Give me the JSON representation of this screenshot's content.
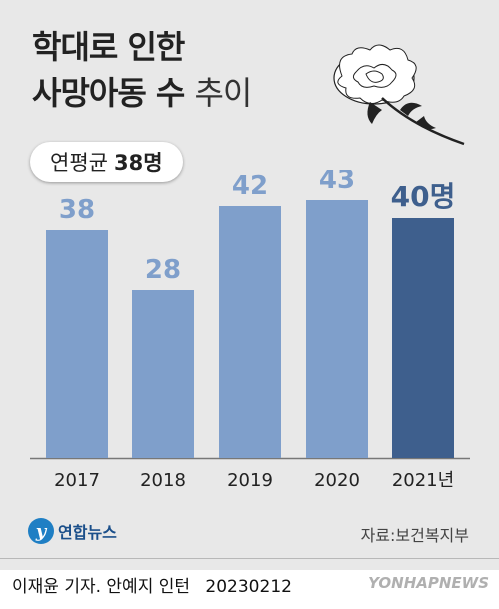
{
  "title": {
    "line1": "학대로 인한",
    "line2_bold": "사망아동 수",
    "line2_light": "추이"
  },
  "average": {
    "label": "연평균",
    "value": "38명"
  },
  "chart_data": {
    "type": "bar",
    "categories": [
      "2017",
      "2018",
      "2019",
      "2020",
      "2021년"
    ],
    "values": [
      38,
      28,
      42,
      43,
      40
    ],
    "value_labels": [
      "38",
      "28",
      "42",
      "43",
      "40명"
    ],
    "ylim": [
      0,
      48
    ],
    "grid": false,
    "colors": {
      "normal": "#7f9fcb",
      "highlight": "#3e5f8d",
      "label_normal": "#7f9fcb",
      "label_highlight": "#3e5f8d"
    },
    "highlight_index": 4
  },
  "source": "자료:보건복지부",
  "logo": {
    "text": "연합뉴스",
    "icon": "yonhap-logo-icon"
  },
  "credit": {
    "author": "이재윤 기자. 안예지 인턴",
    "date": "20230212"
  },
  "watermark": "YONHAPNEWS"
}
